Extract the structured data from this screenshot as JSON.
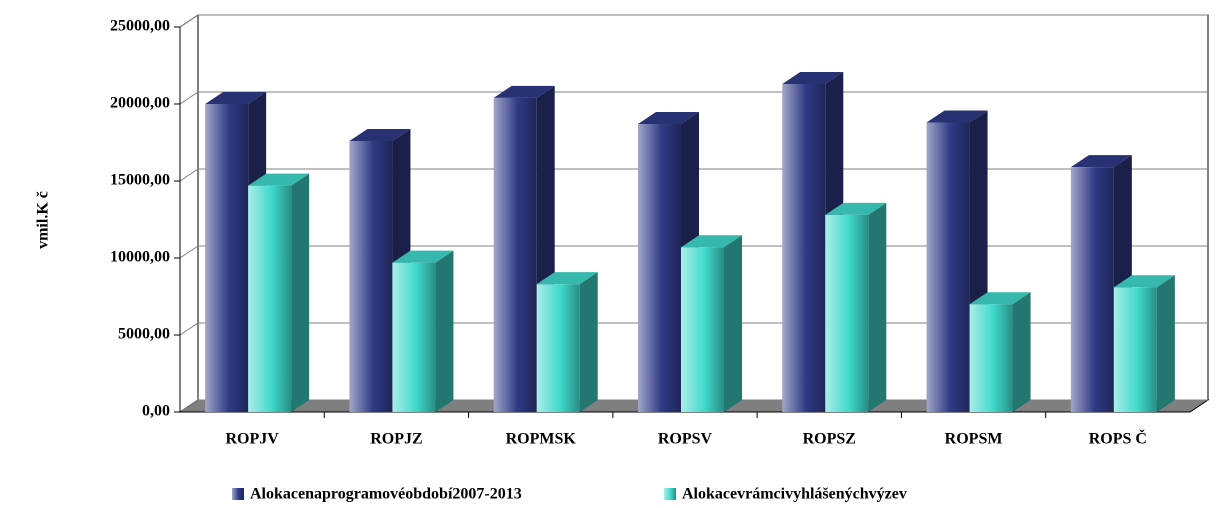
{
  "chart_data": {
    "type": "bar3d",
    "y_label": "vmil.K č",
    "categories": [
      "ROPJV",
      "ROPJZ",
      "ROPMSK",
      "ROPSV",
      "ROPSZ",
      "ROPSM",
      "ROPS Č"
    ],
    "series": [
      {
        "name": "Alokacenaprogramovéobdobí2007-2013",
        "color": "#2f3a86",
        "values": [
          20000,
          17600,
          20400,
          18700,
          21300,
          18800,
          15900
        ]
      },
      {
        "name": "Alokacevrámcivyhlášenýchvýzev",
        "color": "#3fd9cc",
        "values": [
          14700,
          9700,
          8300,
          10700,
          12800,
          7000,
          8100
        ]
      }
    ],
    "ylim": [
      0,
      25000
    ],
    "yticks": [
      {
        "value": 0,
        "label": "0,00"
      },
      {
        "value": 5000,
        "label": "5000,00"
      },
      {
        "value": 10000,
        "label": "10000,00"
      },
      {
        "value": 15000,
        "label": "15000,00"
      },
      {
        "value": 20000,
        "label": "20000,00"
      },
      {
        "value": 25000,
        "label": "25000,00"
      }
    ],
    "grid": true,
    "legend": "bottom"
  }
}
